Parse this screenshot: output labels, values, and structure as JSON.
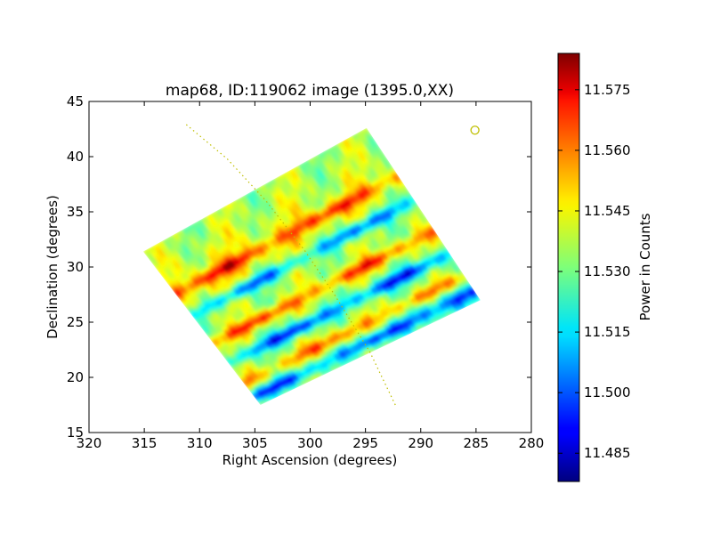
{
  "chart_data": {
    "type": "heatmap",
    "title": "map68, ID:119062 image (1395.0,XX)",
    "xlabel": "Right Ascension (degrees)",
    "ylabel": "Declination (degrees)",
    "xlim": [
      320,
      280
    ],
    "ylim": [
      15,
      45
    ],
    "xticks": [
      320,
      315,
      310,
      305,
      300,
      295,
      290,
      285,
      280
    ],
    "yticks": [
      15,
      20,
      25,
      30,
      35,
      40,
      45
    ],
    "colorbar": {
      "label": "Power in Counts",
      "min": 11.478,
      "max": 11.584,
      "ticks": [
        "11.485",
        "11.500",
        "11.515",
        "11.530",
        "11.545",
        "11.560",
        "11.575"
      ],
      "colormap": "jet"
    },
    "map_region": {
      "corners_radec": [
        [
          315.1,
          31.4
        ],
        [
          294.9,
          42.6
        ],
        [
          284.6,
          27.0
        ],
        [
          304.5,
          17.5
        ]
      ]
    },
    "galactic_plane_curve": {
      "style": "dotted",
      "color": "#bfbf00",
      "points_radec": [
        [
          311.2,
          42.9
        ],
        [
          307.5,
          39.8
        ],
        [
          304.0,
          36.0
        ],
        [
          300.5,
          31.5
        ],
        [
          297.8,
          27.5
        ],
        [
          294.6,
          22.3
        ],
        [
          292.2,
          17.3
        ]
      ]
    },
    "marker": {
      "shape": "circle",
      "color": "#bfbf00",
      "radec": [
        285.1,
        42.4
      ]
    },
    "stripe_features": [
      {
        "value": 11.565,
        "offset": 0.28
      },
      {
        "value": 11.498,
        "offset": 0.42
      },
      {
        "value": 11.568,
        "offset": 0.6
      },
      {
        "value": 11.492,
        "offset": 0.73
      },
      {
        "value": 11.562,
        "offset": 0.86
      },
      {
        "value": 11.495,
        "offset": 0.95
      }
    ]
  }
}
